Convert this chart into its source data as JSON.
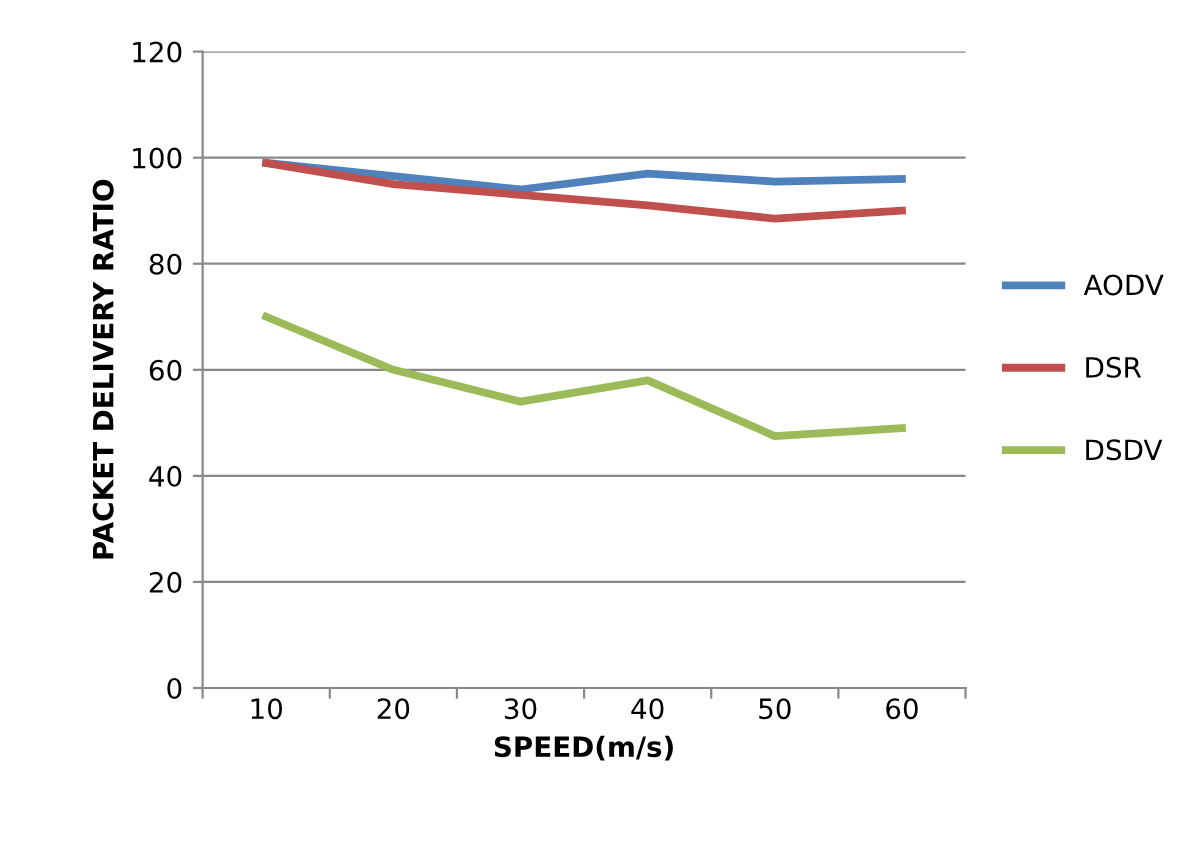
{
  "chart_data": {
    "type": "line",
    "xlabel": "SPEED(m/s)",
    "ylabel": "PACKET DELIVERY RATIO",
    "categories": [
      "10",
      "20",
      "30",
      "40",
      "50",
      "60"
    ],
    "series": [
      {
        "name": "AODV",
        "color": "#4f81bd",
        "values": [
          99,
          96.5,
          94,
          97,
          95.5,
          96
        ]
      },
      {
        "name": "DSR",
        "color": "#c0504d",
        "values": [
          99,
          95,
          93,
          91,
          88.5,
          90
        ]
      },
      {
        "name": "DSDV",
        "color": "#9bbb59",
        "values": [
          70,
          60,
          54,
          58,
          47.5,
          49
        ]
      }
    ],
    "ylim": [
      0,
      120
    ],
    "yticks": [
      0,
      20,
      40,
      60,
      80,
      100,
      120
    ],
    "grid": "y",
    "legend": "right",
    "marker": "none",
    "line_style": "solid"
  }
}
